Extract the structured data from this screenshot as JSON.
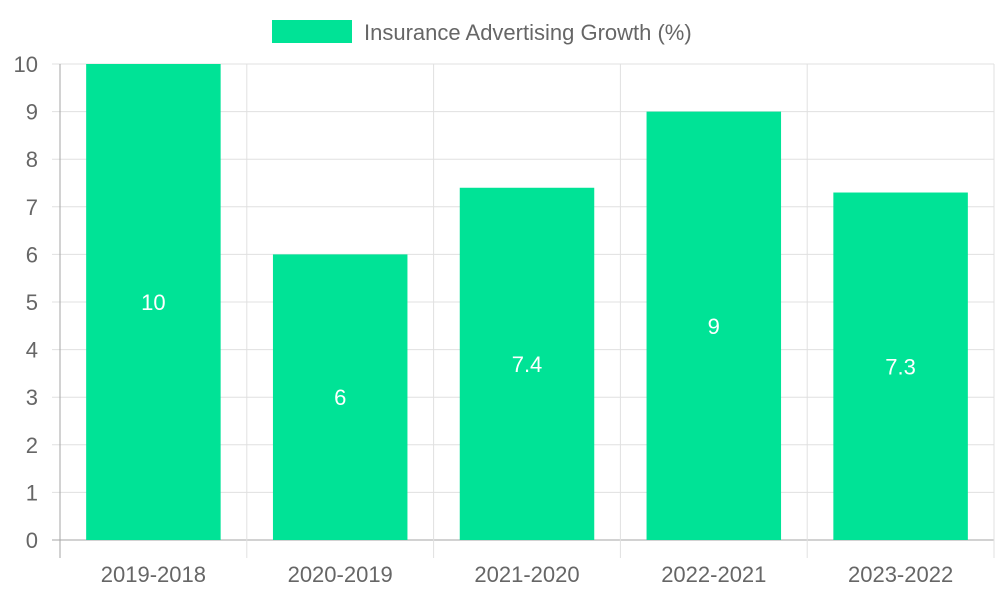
{
  "chart_data": {
    "type": "bar",
    "title": "",
    "legend": {
      "label": "Insurance Advertising Growth (%)",
      "placement": "top-center"
    },
    "categories": [
      "2019-2018",
      "2020-2019",
      "2021-2020",
      "2022-2021",
      "2023-2022"
    ],
    "values": [
      10,
      6,
      7.4,
      9,
      7.3
    ],
    "data_labels": [
      "10",
      "6",
      "7.4",
      "9",
      "7.3"
    ],
    "y_ticks": [
      "0",
      "1",
      "2",
      "3",
      "4",
      "5",
      "6",
      "7",
      "8",
      "9",
      "10"
    ],
    "ylim": [
      0,
      10
    ],
    "xlabel": "",
    "ylabel": "",
    "grid": true,
    "colors": {
      "bar": "#00e396",
      "grid": "#e0e0e0",
      "axis": "#a6a6a6",
      "tick_text": "#666666",
      "data_label": "#ffffff"
    }
  }
}
